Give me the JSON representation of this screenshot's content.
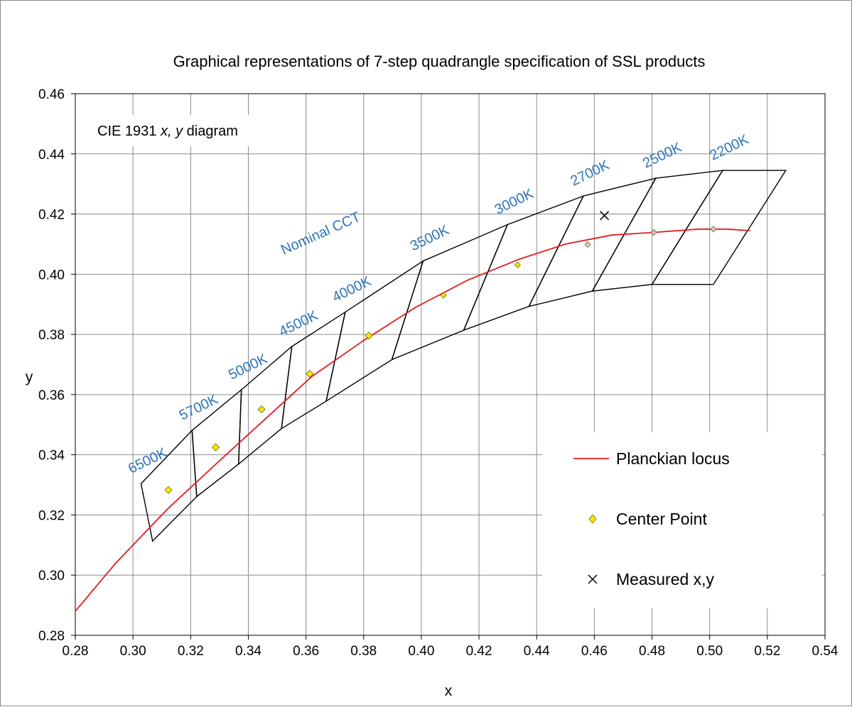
{
  "chart_data": {
    "type": "scatter",
    "title": "Graphical representations of 7-step quadrangle specification of SSL products",
    "xlabel": "x",
    "ylabel": "y",
    "xlim": [
      0.28,
      0.54
    ],
    "ylim": [
      0.28,
      0.46
    ],
    "x_ticks": [
      "0.28",
      "0.30",
      "0.32",
      "0.34",
      "0.36",
      "0.38",
      "0.40",
      "0.42",
      "0.44",
      "0.46",
      "0.48",
      "0.50",
      "0.52",
      "0.54"
    ],
    "y_ticks": [
      "0.28",
      "0.30",
      "0.32",
      "0.34",
      "0.36",
      "0.38",
      "0.40",
      "0.42",
      "0.44",
      "0.46"
    ],
    "x_tick_values": [
      0.28,
      0.3,
      0.32,
      0.34,
      0.36,
      0.38,
      0.4,
      0.42,
      0.44,
      0.46,
      0.48,
      0.5,
      0.52,
      0.54
    ],
    "y_tick_values": [
      0.28,
      0.3,
      0.32,
      0.34,
      0.36,
      0.38,
      0.4,
      0.42,
      0.44,
      0.46
    ],
    "grid": true,
    "legend_position": "bottom-right",
    "diagram_note": {
      "prefix": "CIE 1931 ",
      "italic": "x, y",
      "suffix": " diagram"
    },
    "cct_header": "Nominal CCT",
    "planckian_locus": {
      "name": "Planckian locus",
      "color": "#e41a1c",
      "x": [
        0.28,
        0.294,
        0.312,
        0.33,
        0.346,
        0.362,
        0.38,
        0.398,
        0.416,
        0.434,
        0.45,
        0.466,
        0.482,
        0.496,
        0.506,
        0.514
      ],
      "y": [
        0.288,
        0.304,
        0.322,
        0.338,
        0.352,
        0.366,
        0.378,
        0.389,
        0.398,
        0.405,
        0.41,
        0.413,
        0.414,
        0.415,
        0.415,
        0.4145
      ]
    },
    "quadrangles": [
      {
        "cct": "6500K",
        "x": [
          0.3028,
          0.3205,
          0.3221,
          0.3068
        ],
        "y": [
          0.3304,
          0.3481,
          0.3261,
          0.3113
        ]
      },
      {
        "cct": "5700K",
        "x": [
          0.3205,
          0.3376,
          0.3366,
          0.3221
        ],
        "y": [
          0.3481,
          0.3616,
          0.3369,
          0.3261
        ]
      },
      {
        "cct": "5000K",
        "x": [
          0.3376,
          0.3551,
          0.3515,
          0.3366
        ],
        "y": [
          0.3616,
          0.376,
          0.3487,
          0.3369
        ]
      },
      {
        "cct": "4500K",
        "x": [
          0.3551,
          0.3736,
          0.367,
          0.3515
        ],
        "y": [
          0.376,
          0.3874,
          0.3578,
          0.3487
        ]
      },
      {
        "cct": "4000K",
        "x": [
          0.3736,
          0.4006,
          0.3898,
          0.367
        ],
        "y": [
          0.3874,
          0.4044,
          0.3716,
          0.3578
        ]
      },
      {
        "cct": "3500K",
        "x": [
          0.4006,
          0.4299,
          0.4147,
          0.3898
        ],
        "y": [
          0.4044,
          0.4165,
          0.3814,
          0.3716
        ]
      },
      {
        "cct": "3000K",
        "x": [
          0.4299,
          0.4562,
          0.4373,
          0.4147
        ],
        "y": [
          0.4165,
          0.426,
          0.3893,
          0.3814
        ]
      },
      {
        "cct": "2700K",
        "x": [
          0.4562,
          0.4813,
          0.4593,
          0.4373
        ],
        "y": [
          0.426,
          0.4319,
          0.3944,
          0.3893
        ]
      },
      {
        "cct": "2500K",
        "x": [
          0.4813,
          0.5045,
          0.48,
          0.4593
        ],
        "y": [
          0.4319,
          0.4345,
          0.3966,
          0.3944
        ]
      },
      {
        "cct": "2200K",
        "x": [
          0.5045,
          0.5264,
          0.5013,
          0.48
        ],
        "y": [
          0.4345,
          0.4345,
          0.3966,
          0.3966
        ]
      }
    ],
    "center_points": {
      "name": "Center Point",
      "color": "#ffe600",
      "x": [
        0.3123,
        0.3287,
        0.3446,
        0.3613,
        0.3818,
        0.4077,
        0.4334,
        0.4577,
        0.4806,
        0.5013
      ],
      "y": [
        0.3283,
        0.3425,
        0.3551,
        0.3669,
        0.3796,
        0.393,
        0.4031,
        0.4099,
        0.4139,
        0.415
      ]
    },
    "measured": {
      "name": "Measured x,y",
      "x": [
        0.4635
      ],
      "y": [
        0.4195
      ]
    }
  }
}
